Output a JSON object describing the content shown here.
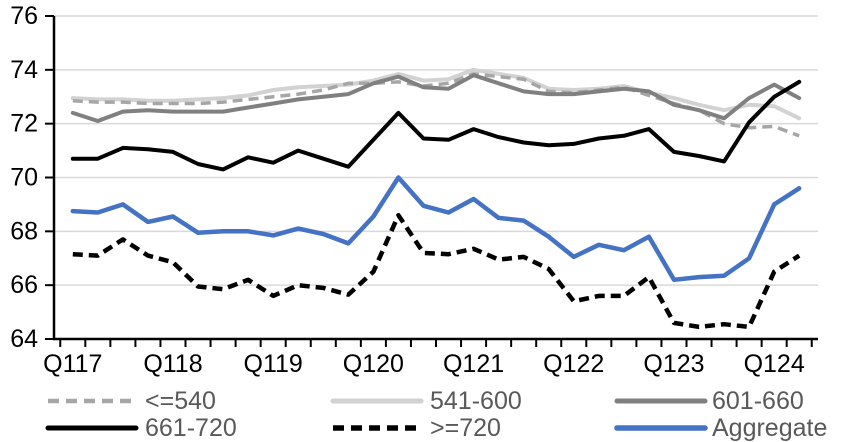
{
  "chart_data": {
    "type": "line",
    "title": "",
    "xlabel": "",
    "ylabel": "",
    "ylim": [
      64,
      76
    ],
    "y_ticks": [
      64,
      66,
      68,
      70,
      72,
      74,
      76
    ],
    "grid": true,
    "legend_position": "bottom",
    "n_points": 30,
    "x_year_labels": [
      "Q117",
      "Q118",
      "Q119",
      "Q120",
      "Q121",
      "Q122",
      "Q123",
      "Q124"
    ],
    "x_label_every": 4,
    "axis_color": "#000000",
    "gridline_color": "#d9d9d9",
    "label_color": "#000000",
    "legend_text_color": "#595959",
    "series": [
      {
        "name": "<=540",
        "color": "#a6a6a6",
        "style": "dashed",
        "width": 3.5,
        "values": [
          72.85,
          72.8,
          72.8,
          72.75,
          72.75,
          72.75,
          72.8,
          72.9,
          73.0,
          73.1,
          73.25,
          73.5,
          73.5,
          73.55,
          73.4,
          73.5,
          73.85,
          73.75,
          73.65,
          73.2,
          73.15,
          73.25,
          73.35,
          73.05,
          72.75,
          72.5,
          72.0,
          71.85,
          71.9,
          71.55
        ]
      },
      {
        "name": "541-600",
        "color": "#d2d2d2",
        "style": "solid",
        "width": 4,
        "values": [
          72.95,
          72.9,
          72.9,
          72.85,
          72.85,
          72.9,
          72.95,
          73.05,
          73.25,
          73.35,
          73.4,
          73.45,
          73.6,
          73.85,
          73.6,
          73.65,
          74.0,
          73.85,
          73.7,
          73.3,
          73.25,
          73.3,
          73.4,
          73.15,
          72.95,
          72.7,
          72.5,
          72.7,
          72.65,
          72.2
        ]
      },
      {
        "name": "601-660",
        "color": "#808080",
        "style": "solid",
        "width": 4,
        "values": [
          72.4,
          72.1,
          72.45,
          72.5,
          72.45,
          72.45,
          72.45,
          72.6,
          72.75,
          72.9,
          73.0,
          73.1,
          73.5,
          73.75,
          73.35,
          73.3,
          73.8,
          73.5,
          73.2,
          73.1,
          73.1,
          73.2,
          73.3,
          73.2,
          72.7,
          72.5,
          72.2,
          72.95,
          73.45,
          72.95
        ]
      },
      {
        "name": "661-720",
        "color": "#000000",
        "style": "solid",
        "width": 4,
        "values": [
          70.7,
          70.7,
          71.1,
          71.05,
          70.95,
          70.5,
          70.3,
          70.75,
          70.55,
          71.0,
          70.7,
          70.4,
          71.4,
          72.4,
          71.45,
          71.4,
          71.8,
          71.5,
          71.3,
          71.2,
          71.25,
          71.45,
          71.55,
          71.8,
          70.95,
          70.8,
          70.6,
          72.05,
          73.0,
          73.55
        ]
      },
      {
        "name": ">=720",
        "color": "#000000",
        "style": "dashed",
        "width": 4.5,
        "values": [
          67.15,
          67.1,
          67.7,
          67.1,
          66.85,
          65.95,
          65.85,
          66.2,
          65.6,
          66.0,
          65.9,
          65.65,
          66.5,
          68.6,
          67.2,
          67.15,
          67.35,
          66.95,
          67.05,
          66.6,
          65.4,
          65.6,
          65.6,
          66.3,
          64.6,
          64.45,
          64.55,
          64.45,
          66.5,
          67.1
        ]
      },
      {
        "name": "Aggregate",
        "color": "#4472c4",
        "style": "solid",
        "width": 4.5,
        "values": [
          68.75,
          68.7,
          69.0,
          68.35,
          68.55,
          67.95,
          68.0,
          68.0,
          67.85,
          68.1,
          67.9,
          67.55,
          68.55,
          70.0,
          68.95,
          68.7,
          69.2,
          68.5,
          68.4,
          67.8,
          67.05,
          67.5,
          67.3,
          67.8,
          66.2,
          66.3,
          66.35,
          67.0,
          69.0,
          69.6
        ]
      }
    ],
    "draw_order": [
      1,
      0,
      2,
      3,
      4,
      5
    ]
  }
}
